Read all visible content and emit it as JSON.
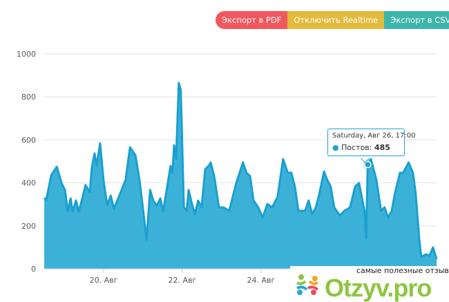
{
  "toolbar": {
    "export_pdf": "Экспорт в PDF",
    "disable_realtime": "Отключить Realtime",
    "export_csv": "Экспорт в CSV",
    "colors": {
      "pdf": "#f0585e",
      "realtime": "#e2bb3c",
      "csv": "#3db5ad"
    }
  },
  "tooltip": {
    "date": "Saturday, Авг 26, 17:00",
    "series_label": "Постов:",
    "value": "485"
  },
  "watermark": {
    "tagline": "самые полезные отзывы",
    "logo": "Otzyv.pro"
  },
  "chart_data": {
    "type": "area",
    "title": "",
    "xlabel": "",
    "ylabel": "",
    "x_unit": "day of August",
    "xlim": [
      18.49,
      28.46
    ],
    "ylim": [
      0,
      1000
    ],
    "yticks": [
      0,
      200,
      400,
      600,
      800,
      1000
    ],
    "xticks": [
      {
        "x": 20,
        "label": "20. Авг"
      },
      {
        "x": 22,
        "label": "22. Авг"
      },
      {
        "x": 24,
        "label": "24. Авг"
      }
    ],
    "grid": true,
    "color": "#1a9fcf",
    "fill": "#3cb1d8",
    "series": [
      {
        "name": "Постов",
        "points": [
          [
            18.49,
            330
          ],
          [
            18.54,
            320
          ],
          [
            18.67,
            437
          ],
          [
            18.81,
            475
          ],
          [
            18.93,
            400
          ],
          [
            19.02,
            365
          ],
          [
            19.09,
            267
          ],
          [
            19.16,
            328
          ],
          [
            19.21,
            267
          ],
          [
            19.3,
            318
          ],
          [
            19.37,
            267
          ],
          [
            19.46,
            330
          ],
          [
            19.54,
            390
          ],
          [
            19.65,
            357
          ],
          [
            19.7,
            470
          ],
          [
            19.77,
            537
          ],
          [
            19.82,
            479
          ],
          [
            19.91,
            585
          ],
          [
            20.0,
            408
          ],
          [
            20.09,
            296
          ],
          [
            20.18,
            341
          ],
          [
            20.26,
            280
          ],
          [
            20.42,
            350
          ],
          [
            20.56,
            415
          ],
          [
            20.67,
            566
          ],
          [
            20.81,
            527
          ],
          [
            20.91,
            415
          ],
          [
            21.0,
            280
          ],
          [
            21.09,
            135
          ],
          [
            21.18,
            367
          ],
          [
            21.26,
            318
          ],
          [
            21.35,
            293
          ],
          [
            21.44,
            328
          ],
          [
            21.51,
            267
          ],
          [
            21.61,
            376
          ],
          [
            21.7,
            479
          ],
          [
            21.75,
            447
          ],
          [
            21.79,
            575
          ],
          [
            21.84,
            511
          ],
          [
            21.91,
            865
          ],
          [
            21.96,
            833
          ],
          [
            22.04,
            286
          ],
          [
            22.11,
            270
          ],
          [
            22.16,
            367
          ],
          [
            22.23,
            312
          ],
          [
            22.32,
            254
          ],
          [
            22.4,
            318
          ],
          [
            22.49,
            286
          ],
          [
            22.58,
            463
          ],
          [
            22.67,
            479
          ],
          [
            22.72,
            495
          ],
          [
            22.81,
            431
          ],
          [
            22.93,
            286
          ],
          [
            23.05,
            286
          ],
          [
            23.19,
            270
          ],
          [
            23.37,
            399
          ],
          [
            23.54,
            495
          ],
          [
            23.63,
            447
          ],
          [
            23.72,
            431
          ],
          [
            23.81,
            318
          ],
          [
            23.93,
            286
          ],
          [
            24.04,
            238
          ],
          [
            24.16,
            302
          ],
          [
            24.28,
            286
          ],
          [
            24.42,
            334
          ],
          [
            24.56,
            511
          ],
          [
            24.68,
            447
          ],
          [
            24.77,
            447
          ],
          [
            24.86,
            383
          ],
          [
            24.95,
            270
          ],
          [
            25.12,
            270
          ],
          [
            25.21,
            318
          ],
          [
            25.3,
            254
          ],
          [
            25.39,
            286
          ],
          [
            25.47,
            341
          ],
          [
            25.6,
            453
          ],
          [
            25.68,
            415
          ],
          [
            25.77,
            383
          ],
          [
            25.86,
            286
          ],
          [
            26.0,
            248
          ],
          [
            26.12,
            270
          ],
          [
            26.26,
            286
          ],
          [
            26.39,
            383
          ],
          [
            26.49,
            399
          ],
          [
            26.63,
            270
          ],
          [
            26.67,
            141
          ],
          [
            26.71,
            485
          ],
          [
            26.79,
            511
          ],
          [
            26.93,
            415
          ],
          [
            27.05,
            270
          ],
          [
            27.14,
            286
          ],
          [
            27.23,
            238
          ],
          [
            27.32,
            270
          ],
          [
            27.4,
            350
          ],
          [
            27.53,
            447
          ],
          [
            27.61,
            447
          ],
          [
            27.75,
            495
          ],
          [
            27.86,
            447
          ],
          [
            27.93,
            350
          ],
          [
            28.02,
            141
          ],
          [
            28.07,
            55
          ],
          [
            28.19,
            68
          ],
          [
            28.28,
            61
          ],
          [
            28.37,
            100
          ],
          [
            28.46,
            45
          ]
        ]
      }
    ],
    "highlight": {
      "x": 26.71,
      "value": 485
    }
  }
}
